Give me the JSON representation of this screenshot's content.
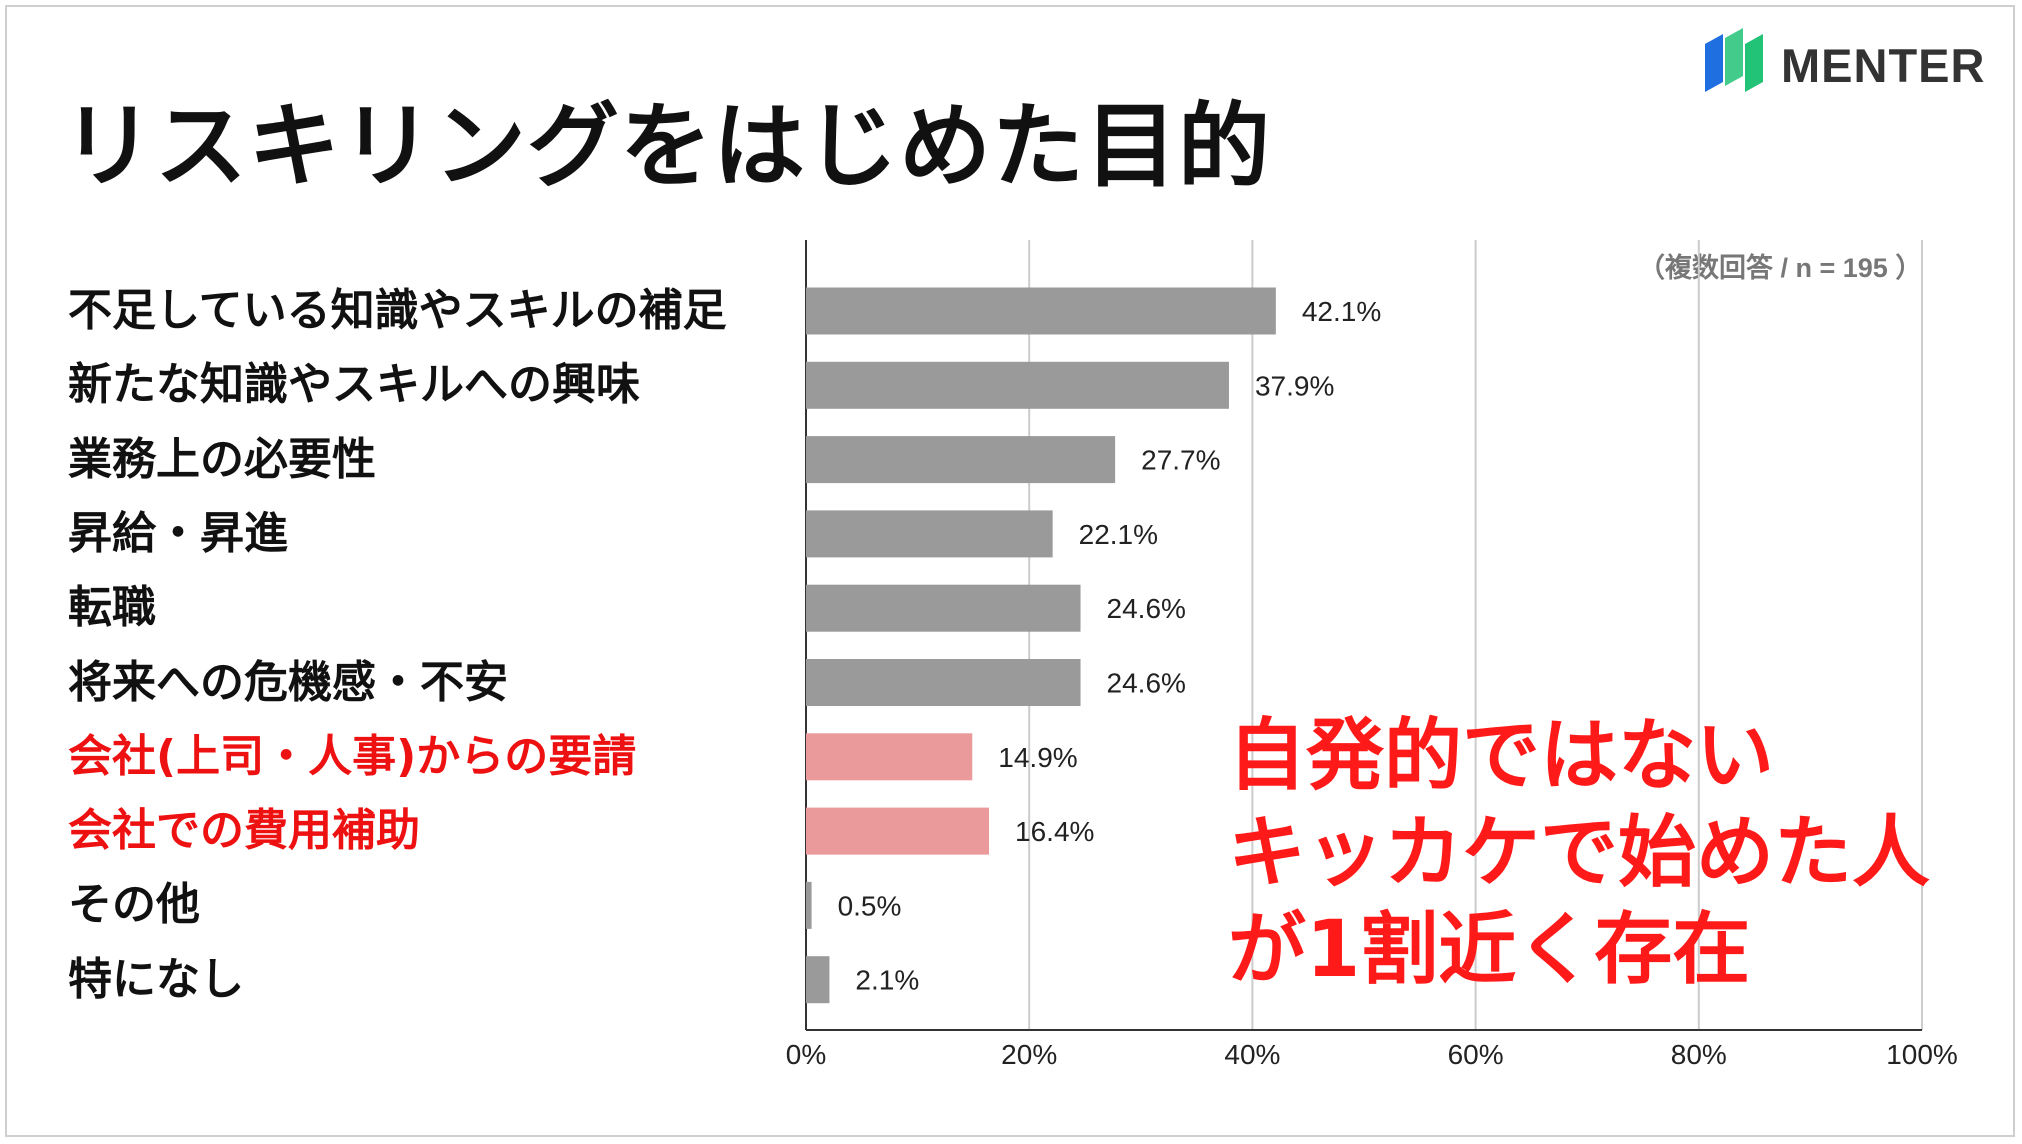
{
  "title": "リスキリングをはじめた目的",
  "logo": {
    "text": "MENTER",
    "icon": "menter-logo-icon",
    "colors": [
      "#1f6fe0",
      "#22c277"
    ]
  },
  "note": "（複数回答 / n = 195 ）",
  "callout": {
    "lines": [
      "自発的ではない",
      "キッカケで始めた人",
      "が1割近く存在"
    ],
    "color": "#ff1a1a"
  },
  "colors": {
    "bar_default": "#9a9a9a",
    "bar_highlight": "#ea9a9a",
    "label_default": "#111111",
    "label_highlight": "#ee1111",
    "grid": "#cccccc",
    "axis": "#333333"
  },
  "chart_data": {
    "type": "bar",
    "orientation": "horizontal",
    "categories": [
      "不足している知識やスキルの補足",
      "新たな知識やスキルへの興味",
      "業務上の必要性",
      "昇給・昇進",
      "転職",
      "将来への危機感・不安",
      "会社(上司・人事)からの要請",
      "会社での費用補助",
      "その他",
      "特になし"
    ],
    "values": [
      42.1,
      37.9,
      27.7,
      22.1,
      24.6,
      24.6,
      14.9,
      16.4,
      0.5,
      2.1
    ],
    "value_labels": [
      "42.1%",
      "37.9%",
      "27.7%",
      "22.1%",
      "24.6%",
      "24.6%",
      "14.9%",
      "16.4%",
      "0.5%",
      "2.1%"
    ],
    "highlighted": [
      false,
      false,
      false,
      false,
      false,
      false,
      true,
      true,
      false,
      false
    ],
    "x_ticks": [
      "0%",
      "20%",
      "40%",
      "60%",
      "80%",
      "100%"
    ],
    "xlim": [
      0,
      100
    ],
    "grid": true,
    "legend": "none"
  }
}
